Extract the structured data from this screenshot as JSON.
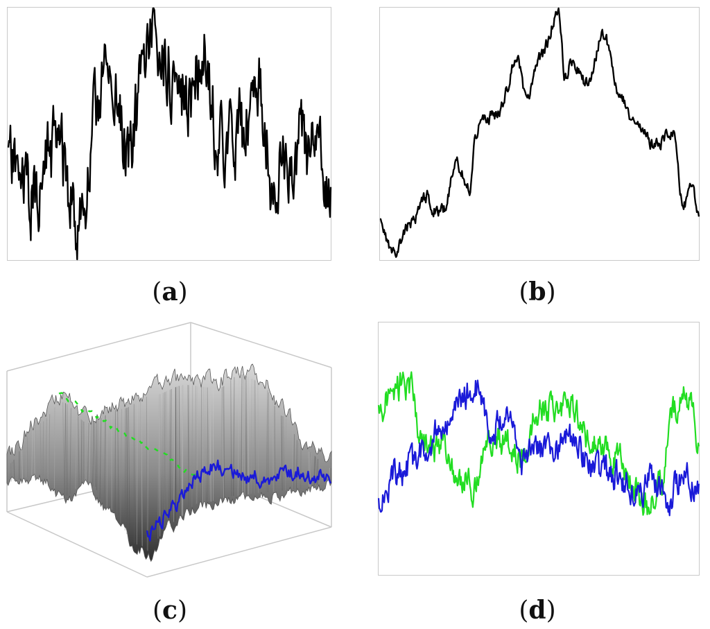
{
  "panels": [
    {
      "id": "a",
      "label_open": "(",
      "label": "a",
      "label_close": ")"
    },
    {
      "id": "b",
      "label_open": "(",
      "label": "b",
      "label_close": ")"
    },
    {
      "id": "c",
      "label_open": "(",
      "label": "c",
      "label_close": ")"
    },
    {
      "id": "d",
      "label_open": "(",
      "label": "d",
      "label_close": ")"
    }
  ],
  "colors": {
    "frame": "#c8c8c8",
    "line": "#000000",
    "green": "#22dd22",
    "blue": "#1a1ad8",
    "surface_dark": "#2e2e2e",
    "surface_light": "#d8d8d8"
  },
  "chart_data": [
    {
      "panel": "a",
      "type": "line",
      "title": "",
      "xlabel": "",
      "ylabel": "",
      "grid": false,
      "axes_ticks": false,
      "description_seed": 11,
      "series": [
        {
          "color": "#000000",
          "roughness": "high",
          "points": 460
        }
      ]
    },
    {
      "panel": "b",
      "type": "line",
      "title": "",
      "xlabel": "",
      "ylabel": "",
      "grid": false,
      "axes_ticks": false,
      "description_seed": 23,
      "series": [
        {
          "color": "#000000",
          "roughness": "low",
          "points": 460
        }
      ]
    },
    {
      "panel": "c",
      "type": "surface",
      "title": "",
      "grid": false,
      "axes_ticks": false,
      "series": [
        {
          "color": "#22dd22",
          "role": "profile"
        },
        {
          "color": "#1a1ad8",
          "role": "profile"
        }
      ]
    },
    {
      "panel": "d",
      "type": "line",
      "title": "",
      "xlabel": "",
      "ylabel": "",
      "grid": false,
      "axes_ticks": false,
      "series": [
        {
          "color": "#22dd22",
          "points": 460
        },
        {
          "color": "#1a1ad8",
          "points": 460
        }
      ]
    }
  ]
}
